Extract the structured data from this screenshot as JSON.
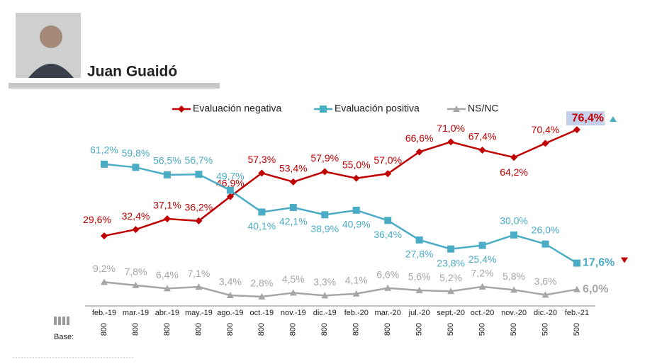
{
  "header": {
    "title": "Juan Guaidó"
  },
  "chart_data": {
    "type": "line",
    "categories": [
      "feb.-19",
      "mar.-19",
      "abr.-19",
      "may.-19",
      "ago.-19",
      "oct.-19",
      "nov.-19",
      "dic.-19",
      "feb.-20",
      "mar.-20",
      "jul.-20",
      "sept.-20",
      "oct.-20",
      "nov.-20",
      "dic.-20",
      "feb.-21"
    ],
    "ylim": [
      0,
      80
    ],
    "series": [
      {
        "name": "Evaluación negativa",
        "color": "#c00000",
        "marker": "diamond",
        "values": [
          29.6,
          32.4,
          37.1,
          36.2,
          46.9,
          57.3,
          53.4,
          57.9,
          55.0,
          57.0,
          66.6,
          71.0,
          67.4,
          64.2,
          70.4,
          76.4
        ],
        "value_labels": [
          "29,6%",
          "32,4%",
          "37,1%",
          "36,2%",
          "46,9%",
          "57,3%",
          "53,4%",
          "57,9%",
          "55,0%",
          "57,0%",
          "66,6%",
          "71,0%",
          "67,4%",
          "64,2%",
          "70,4%",
          "76,4%"
        ]
      },
      {
        "name": "Evaluación positiva",
        "color": "#4bacc6",
        "marker": "square",
        "values": [
          61.2,
          59.8,
          56.5,
          56.7,
          49.7,
          40.1,
          42.1,
          38.9,
          40.9,
          36.4,
          27.8,
          23.8,
          25.4,
          30.0,
          26.0,
          17.6
        ],
        "value_labels": [
          "61,2%",
          "59,8%",
          "56,5%",
          "56,7%",
          "49,7%",
          "40,1%",
          "42,1%",
          "38,9%",
          "40,9%",
          "36,4%",
          "27,8%",
          "23,8%",
          "25,4%",
          "30,0%",
          "26,0%",
          "17,6%"
        ]
      },
      {
        "name": "NS/NC",
        "color": "#a6a6a6",
        "marker": "triangle",
        "values": [
          9.2,
          7.8,
          6.4,
          7.1,
          3.4,
          2.8,
          4.5,
          3.3,
          4.1,
          6.6,
          5.6,
          5.2,
          7.2,
          5.8,
          3.6,
          6.0
        ],
        "value_labels": [
          "9,2%",
          "7,8%",
          "6,4%",
          "7,1%",
          "3,4%",
          "2,8%",
          "4,5%",
          "3,3%",
          "4,1%",
          "6,6%",
          "5,6%",
          "5,2%",
          "7,2%",
          "5,8%",
          "3,6%",
          "6,0%"
        ]
      }
    ],
    "base_label": "Base:",
    "base": [
      800,
      800,
      800,
      800,
      800,
      800,
      800,
      800,
      800,
      800,
      500,
      500,
      500,
      500,
      500,
      500
    ]
  }
}
